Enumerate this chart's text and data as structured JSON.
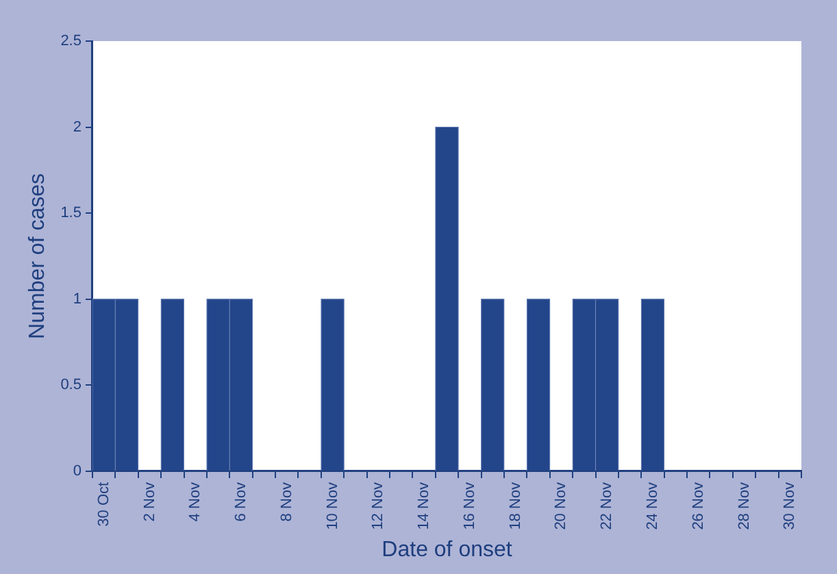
{
  "chart_data": {
    "type": "bar",
    "xlabel": "Date of onset",
    "ylabel": "Number of cases",
    "categories": [
      "30 Oct",
      null,
      "2 Nov",
      null,
      "4 Nov",
      null,
      "6 Nov",
      null,
      "8 Nov",
      null,
      "10 Nov",
      null,
      "12 Nov",
      null,
      "14 Nov",
      null,
      "16 Nov",
      null,
      "18 Nov",
      null,
      "20 Nov",
      null,
      "22 Nov",
      null,
      "24 Nov",
      null,
      "26 Nov",
      null,
      "28 Nov",
      null,
      "30 Nov"
    ],
    "values": [
      1,
      1,
      0,
      1,
      0,
      1,
      1,
      0,
      0,
      0,
      1,
      0,
      0,
      0,
      0,
      2,
      0,
      1,
      0,
      1,
      0,
      1,
      1,
      0,
      1,
      0,
      0,
      0,
      0,
      0,
      0
    ],
    "color": "#23458a",
    "ylim": [
      0,
      2.5
    ],
    "yticks": [
      0,
      0.5,
      1,
      1.5,
      2,
      2.5
    ],
    "grid": false,
    "legend": false
  }
}
